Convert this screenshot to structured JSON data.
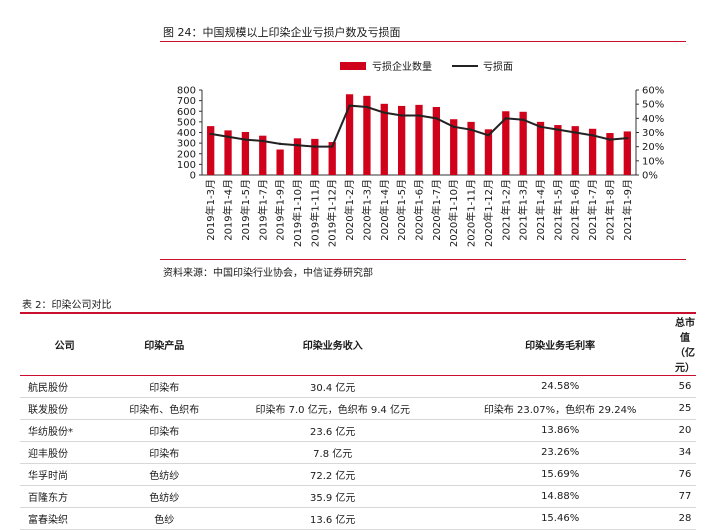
{
  "figure": {
    "title": "图 24：中国规模以上印染企业亏损户数及亏损面",
    "source": "资料来源：中国印染行业协会，中信证券研究部"
  },
  "chart_data": {
    "type": "bar+line",
    "categories": [
      "2019年1-3月",
      "2019年1-4月",
      "2019年1-5月",
      "2019年1-7月",
      "2019年1-9月",
      "2019年1-10月",
      "2019年1-11月",
      "2019年1-12月",
      "2020年1-2月",
      "2020年1-3月",
      "2020年1-4月",
      "2020年1-5月",
      "2020年1-6月",
      "2020年1-7月",
      "2020年1-10月",
      "2020年1-11月",
      "2020年1-12月",
      "2021年1-2月",
      "2021年1-3月",
      "2021年1-4月",
      "2021年1-5月",
      "2021年1-6月",
      "2021年1-7月",
      "2021年1-8月",
      "2021年1-9月"
    ],
    "series": [
      {
        "name": "亏损企业数量",
        "kind": "bar",
        "axis": "left",
        "color": "#d0021b",
        "values": [
          460,
          420,
          405,
          370,
          240,
          345,
          340,
          310,
          760,
          745,
          670,
          650,
          660,
          640,
          525,
          500,
          430,
          600,
          595,
          500,
          470,
          460,
          435,
          395,
          410
        ]
      },
      {
        "name": "亏损面",
        "kind": "line",
        "axis": "right",
        "color": "#222222",
        "values": [
          29,
          27,
          25,
          24,
          22,
          21,
          20,
          20,
          49,
          48,
          44,
          42,
          42,
          40,
          34,
          32,
          28,
          40,
          39,
          34,
          32,
          30,
          28,
          25,
          26
        ]
      }
    ],
    "y_left": {
      "min": 0,
      "max": 800,
      "ticks": [
        "800",
        "700",
        "600",
        "500",
        "400",
        "300",
        "200",
        "100",
        "0"
      ]
    },
    "y_right": {
      "min": 0,
      "max": 60,
      "ticks": [
        "60%",
        "50%",
        "40%",
        "30%",
        "20%",
        "10%",
        "0%"
      ]
    },
    "legend_position": "top-center",
    "grid": false
  },
  "table": {
    "title": "表 2：印染公司对比",
    "headers": [
      "公司",
      "印染产品",
      "印染业务收入",
      "印染业务毛利率",
      "总市值（亿元）"
    ],
    "rows": [
      [
        "航民股份",
        "印染布",
        "30.4 亿元",
        "24.58%",
        "56"
      ],
      [
        "联发股份",
        "印染布、色织布",
        "印染布 7.0 亿元，色织布 9.4 亿元",
        "印染布 23.07%，色织布 29.24%",
        "25"
      ],
      [
        "华纺股份*",
        "印染布",
        "23.6 亿元",
        "13.86%",
        "20"
      ],
      [
        "迎丰股份",
        "印染布",
        "7.8 亿元",
        "23.26%",
        "34"
      ],
      [
        "华孚时尚",
        "色纺纱",
        "72.2 亿元",
        "15.69%",
        "76"
      ],
      [
        "百隆东方",
        "色纺纱",
        "35.9 亿元",
        "14.88%",
        "77"
      ],
      [
        "富春染织",
        "色纱",
        "13.6 亿元",
        "15.46%",
        "28"
      ]
    ]
  }
}
